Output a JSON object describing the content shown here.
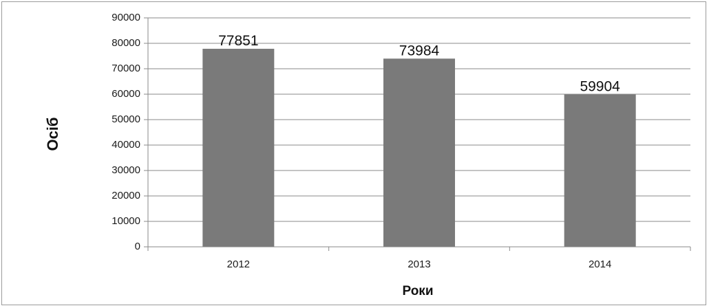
{
  "chart_data": {
    "type": "bar",
    "categories": [
      "2012",
      "2013",
      "2014"
    ],
    "values": [
      77851,
      73984,
      59904
    ],
    "data_labels": [
      "77851",
      "73984",
      "59904"
    ],
    "xlabel": "Роки",
    "ylabel": "Осіб",
    "ylim": [
      0,
      90000
    ],
    "yticks": [
      "0",
      "10000",
      "20000",
      "30000",
      "40000",
      "50000",
      "60000",
      "70000",
      "80000",
      "90000"
    ],
    "grid": true,
    "bar_color": "#7a7a7a",
    "grid_color": "#8a8a8a"
  }
}
